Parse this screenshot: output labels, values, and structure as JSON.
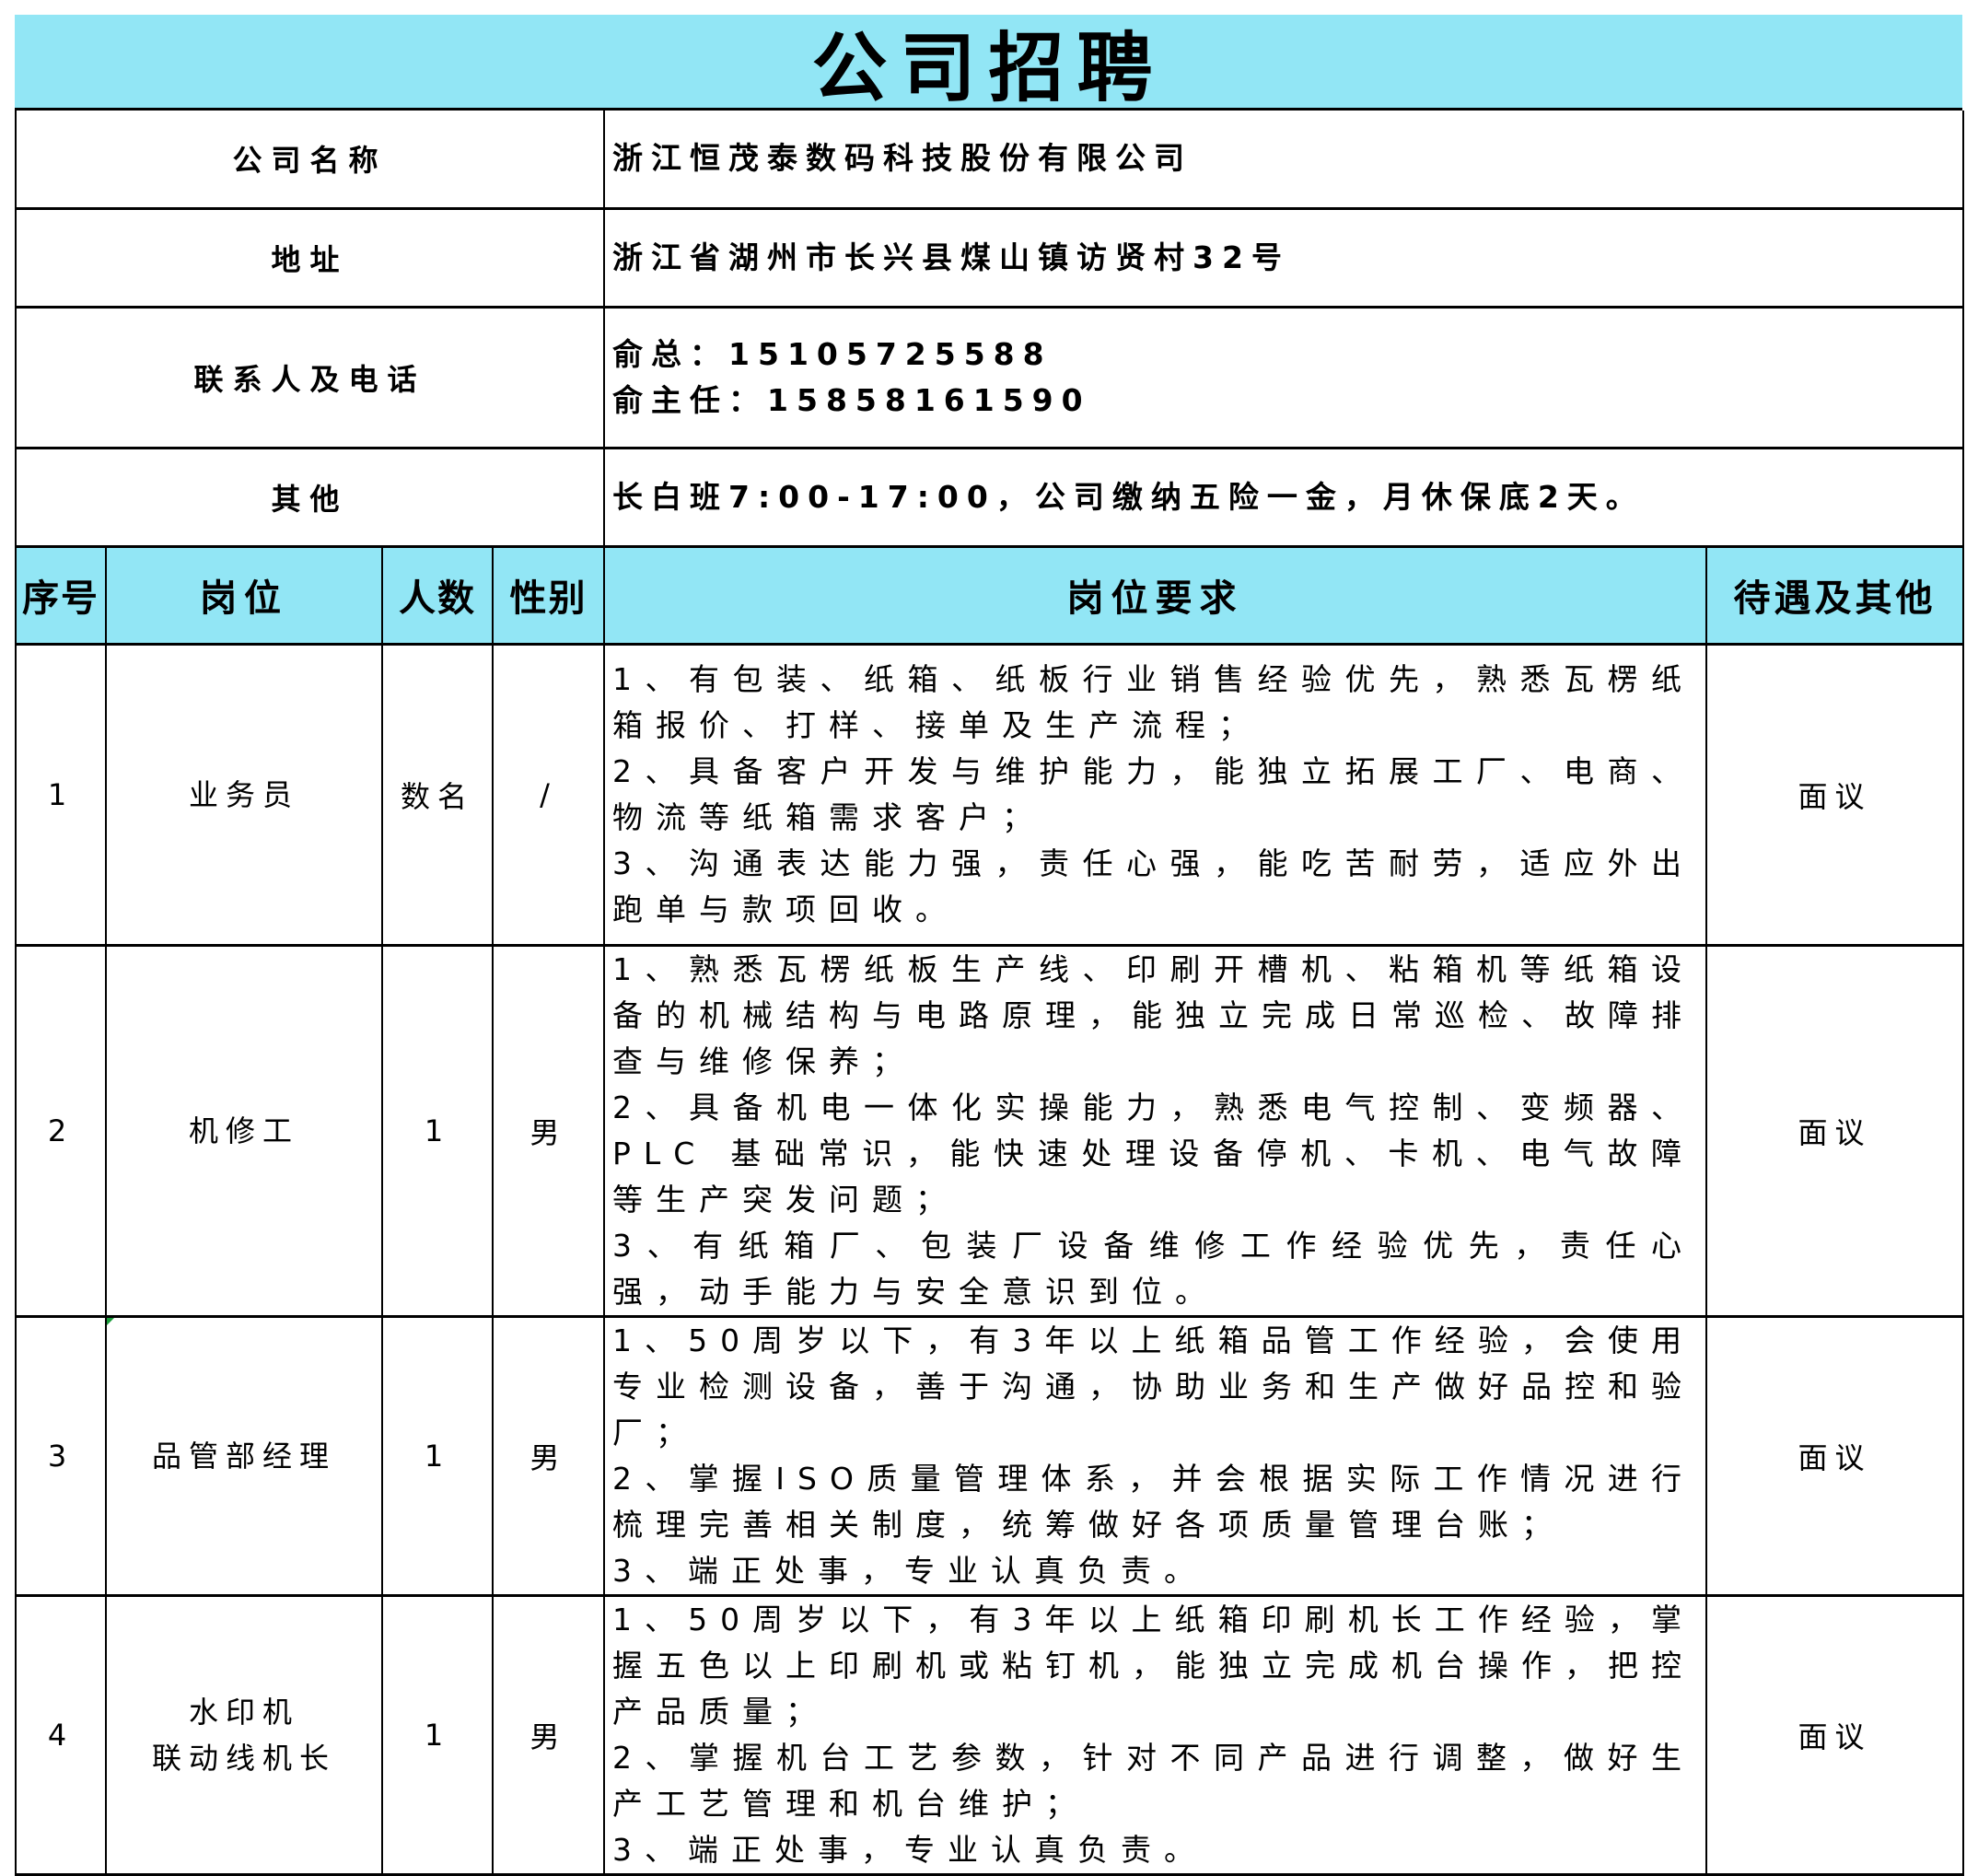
{
  "title": "公司招聘",
  "info": [
    {
      "label": "公司名称",
      "lines": [
        "浙江恒茂泰数码科技股份有限公司"
      ]
    },
    {
      "label": "地址",
      "lines": [
        "浙江省湖州市长兴县煤山镇访贤村32号"
      ]
    },
    {
      "label": "联系人及电话",
      "lines": [
        "俞总：15105725588",
        "俞主任：15858161590"
      ]
    },
    {
      "label": "其他",
      "lines": [
        "长白班7:00-17:00，公司缴纳五险一金，月休保底2天。"
      ]
    }
  ],
  "headers": [
    "序号",
    "岗位",
    "人数",
    "性别",
    "岗位要求",
    "待遇及其他"
  ],
  "jobs": [
    {
      "no": "1",
      "position": "业务员",
      "count": "数名",
      "gender": "/",
      "requirements": [
        "1、有包装、纸箱、纸板行业销售经验优先，熟悉瓦楞纸箱报价、打样、接单及生产流程；",
        "2、具备客户开发与维护能力，能独立拓展工厂、电商、物流等纸箱需求客户；",
        "3、沟通表达能力强，责任心强，能吃苦耐劳，适应外出跑单与款项回收。"
      ],
      "benefits": "面议"
    },
    {
      "no": "2",
      "position": "机修工",
      "count": "1",
      "gender": "男",
      "requirements": [
        "1、熟悉瓦楞纸板生产线、印刷开槽机、粘箱机等纸箱设备的机械结构与电路原理，能独立完成日常巡检、故障排查与维修保养；",
        "2、具备机电一体化实操能力，熟悉电气控制、变频器、PLC 基础常识，能快速处理设备停机、卡机、电气故障等生产突发问题；",
        "3、有纸箱厂、包装厂设备维修工作经验优先，责任心强，动手能力与安全意识到位。"
      ],
      "benefits": "面议"
    },
    {
      "no": "3",
      "position": "品管部经理",
      "count": "1",
      "gender": "男",
      "requirements": [
        "1、50周岁以下，有3年以上纸箱品管工作经验，会使用专业检测设备，善于沟通，协助业务和生产做好品控和验厂；",
        "2、掌握ISO质量管理体系，并会根据实际工作情况进行梳理完善相关制度，统筹做好各项质量管理台账；",
        "3、端正处事，专业认真负责。"
      ],
      "benefits": "面议"
    },
    {
      "no": "4",
      "position": "水印机\n联动线机长",
      "position_lines": [
        "水印机",
        "联动线机长"
      ],
      "count": "1",
      "gender": "男",
      "requirements": [
        "1、50周岁以下，有3年以上纸箱印刷机长工作经验，掌握五色以上印刷机或粘钉机，能独立完成机台操作，把控产品质量；",
        "2、掌握机台工艺参数，针对不同产品进行调整，做好生产工艺管理和机台维护；",
        "3、端正处事，专业认真负责。"
      ],
      "benefits": "面议"
    }
  ],
  "colors": {
    "header_bg": "#92e6f5",
    "border": "#000000"
  }
}
